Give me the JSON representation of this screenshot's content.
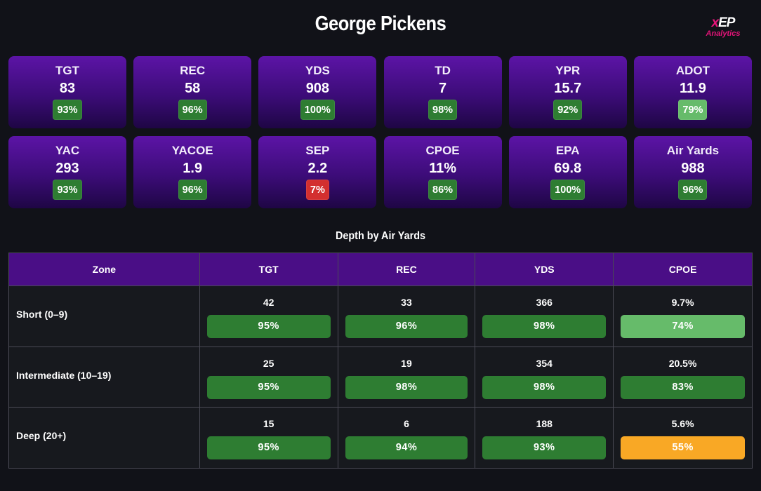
{
  "header": {
    "title": "George Pickens",
    "logo": {
      "mark_x": "x",
      "mark_ep": "EP",
      "subtitle": "Analytics"
    }
  },
  "colors": {
    "dark_green": "#2e7d32",
    "light_green": "#66bb6a",
    "red": "#d32f2f",
    "orange": "#f9a825",
    "card_purple": "#5c14a6",
    "header_purple": "#4a0e86",
    "brand_pink": "#e8147a"
  },
  "stats": [
    {
      "label": "TGT",
      "value": "83",
      "pct": "93%",
      "tier": "dark_green"
    },
    {
      "label": "REC",
      "value": "58",
      "pct": "96%",
      "tier": "dark_green"
    },
    {
      "label": "YDS",
      "value": "908",
      "pct": "100%",
      "tier": "dark_green"
    },
    {
      "label": "TD",
      "value": "7",
      "pct": "98%",
      "tier": "dark_green"
    },
    {
      "label": "YPR",
      "value": "15.7",
      "pct": "92%",
      "tier": "dark_green"
    },
    {
      "label": "ADOT",
      "value": "11.9",
      "pct": "79%",
      "tier": "light_green"
    },
    {
      "label": "YAC",
      "value": "293",
      "pct": "93%",
      "tier": "dark_green"
    },
    {
      "label": "YACOE",
      "value": "1.9",
      "pct": "96%",
      "tier": "dark_green"
    },
    {
      "label": "SEP",
      "value": "2.2",
      "pct": "7%",
      "tier": "red"
    },
    {
      "label": "CPOE",
      "value": "11%",
      "pct": "86%",
      "tier": "dark_green"
    },
    {
      "label": "EPA",
      "value": "69.8",
      "pct": "100%",
      "tier": "dark_green"
    },
    {
      "label": "Air Yards",
      "value": "988",
      "pct": "96%",
      "tier": "dark_green"
    }
  ],
  "depth": {
    "title": "Depth by Air Yards",
    "columns": [
      "Zone",
      "TGT",
      "REC",
      "YDS",
      "CPOE"
    ],
    "rows": [
      {
        "zone": "Short (0–9)",
        "cells": [
          {
            "value": "42",
            "pct": "95%",
            "tier": "dark_green"
          },
          {
            "value": "33",
            "pct": "96%",
            "tier": "dark_green"
          },
          {
            "value": "366",
            "pct": "98%",
            "tier": "dark_green"
          },
          {
            "value": "9.7%",
            "pct": "74%",
            "tier": "light_green"
          }
        ]
      },
      {
        "zone": "Intermediate (10–19)",
        "cells": [
          {
            "value": "25",
            "pct": "95%",
            "tier": "dark_green"
          },
          {
            "value": "19",
            "pct": "98%",
            "tier": "dark_green"
          },
          {
            "value": "354",
            "pct": "98%",
            "tier": "dark_green"
          },
          {
            "value": "20.5%",
            "pct": "83%",
            "tier": "dark_green"
          }
        ]
      },
      {
        "zone": "Deep (20+)",
        "cells": [
          {
            "value": "15",
            "pct": "95%",
            "tier": "dark_green"
          },
          {
            "value": "6",
            "pct": "94%",
            "tier": "dark_green"
          },
          {
            "value": "188",
            "pct": "93%",
            "tier": "dark_green"
          },
          {
            "value": "5.6%",
            "pct": "55%",
            "tier": "orange"
          }
        ]
      }
    ]
  }
}
